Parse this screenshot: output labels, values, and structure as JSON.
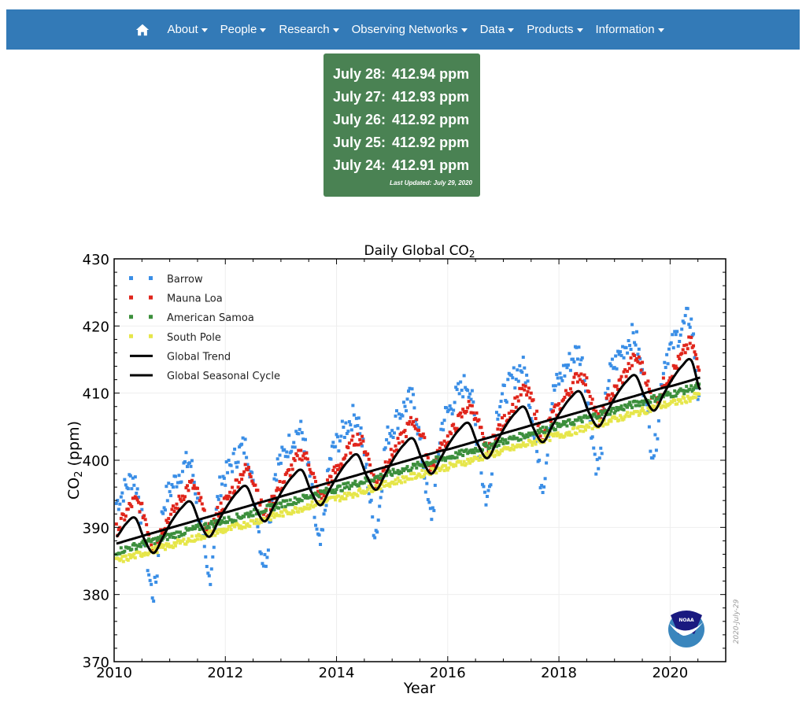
{
  "nav": {
    "items": [
      {
        "label": "About"
      },
      {
        "label": "People"
      },
      {
        "label": "Research"
      },
      {
        "label": "Observing Networks"
      },
      {
        "label": "Data"
      },
      {
        "label": "Products"
      },
      {
        "label": "Information"
      }
    ],
    "home_icon": "home-icon",
    "color": "#337ab7"
  },
  "daily_box": {
    "color": "#4a8253",
    "rows": [
      {
        "date": "July 28:",
        "value": "412.94 ppm"
      },
      {
        "date": "July 27:",
        "value": "412.93 ppm"
      },
      {
        "date": "July 26:",
        "value": "412.92 ppm"
      },
      {
        "date": "July 25:",
        "value": "412.92 ppm"
      },
      {
        "date": "July 24:",
        "value": "412.91 ppm"
      }
    ],
    "last_updated": "Last Updated: July 29, 2020"
  },
  "chart_data": {
    "type": "scatter",
    "title": "Daily Global CO",
    "title_subscript": "2",
    "xlabel": "Year",
    "ylabel": "CO",
    "ylabel_subscript": "2",
    "ylabel_unit": " (ppm)",
    "xlim": [
      2010,
      2021
    ],
    "ylim": [
      370,
      430
    ],
    "xticks": [
      "2010",
      "2012",
      "2014",
      "2016",
      "2018",
      "2020"
    ],
    "yticks": [
      "370",
      "380",
      "390",
      "400",
      "410",
      "420",
      "430"
    ],
    "grid": true,
    "legend_position": "top-left",
    "date_stamp": "2020-July-29",
    "logo": "NOAA",
    "x": [
      2010.04,
      2010.21,
      2010.38,
      2010.54,
      2010.71,
      2010.88,
      2011.04,
      2011.21,
      2011.38,
      2011.54,
      2011.71,
      2011.88,
      2012.04,
      2012.21,
      2012.38,
      2012.54,
      2012.71,
      2012.88,
      2013.04,
      2013.21,
      2013.38,
      2013.54,
      2013.71,
      2013.88,
      2014.04,
      2014.21,
      2014.38,
      2014.54,
      2014.71,
      2014.88,
      2015.04,
      2015.21,
      2015.38,
      2015.54,
      2015.71,
      2015.88,
      2016.04,
      2016.21,
      2016.38,
      2016.54,
      2016.71,
      2016.88,
      2017.04,
      2017.21,
      2017.38,
      2017.54,
      2017.71,
      2017.88,
      2018.04,
      2018.21,
      2018.38,
      2018.54,
      2018.71,
      2018.88,
      2019.04,
      2019.21,
      2019.38,
      2019.54,
      2019.71,
      2019.88,
      2020.04,
      2020.21,
      2020.38,
      2020.54
    ],
    "series": [
      {
        "name": "Barrow",
        "kind": "points",
        "color": "#3a8ee6",
        "values": [
          393.6,
          396.0,
          396.9,
          388.8,
          380.2,
          392.6,
          396.0,
          398.4,
          399.3,
          391.2,
          382.6,
          395.0,
          398.3,
          400.7,
          401.6,
          393.5,
          384.9,
          397.3,
          400.7,
          403.1,
          404.0,
          395.9,
          387.3,
          399.7,
          403.0,
          405.4,
          406.3,
          398.2,
          389.6,
          402.0,
          405.4,
          407.8,
          408.7,
          400.6,
          392.0,
          404.4,
          407.7,
          410.1,
          411.0,
          402.9,
          394.3,
          406.7,
          410.1,
          412.5,
          413.4,
          405.3,
          396.7,
          409.1,
          412.4,
          414.8,
          415.7,
          407.6,
          399.0,
          411.4,
          414.8,
          417.2,
          418.1,
          410.0,
          401.4,
          413.8,
          417.1,
          419.5,
          420.4,
          407.0
        ]
      },
      {
        "name": "Mauna Loa",
        "kind": "points",
        "color": "#e0251b",
        "values": [
          389.6,
          392.0,
          393.9,
          391.8,
          387.2,
          390.1,
          392.0,
          394.4,
          396.3,
          394.2,
          389.6,
          392.5,
          394.3,
          396.7,
          398.6,
          396.5,
          391.9,
          394.8,
          396.7,
          399.1,
          401.0,
          398.9,
          394.3,
          397.2,
          399.0,
          401.4,
          403.3,
          401.2,
          396.6,
          399.5,
          401.4,
          403.8,
          405.7,
          403.6,
          399.0,
          401.9,
          403.7,
          406.1,
          408.0,
          405.9,
          401.3,
          404.2,
          406.1,
          408.5,
          410.4,
          408.3,
          403.7,
          406.6,
          408.4,
          410.8,
          412.7,
          410.6,
          406.0,
          408.9,
          410.8,
          413.2,
          415.1,
          413.0,
          408.4,
          411.3,
          413.1,
          415.5,
          417.4,
          413.0
        ]
      },
      {
        "name": "American Samoa",
        "kind": "points",
        "color": "#3c8f3c",
        "values": [
          386.4,
          386.8,
          387.2,
          387.6,
          388.0,
          388.4,
          388.8,
          389.2,
          389.6,
          390.0,
          390.4,
          390.8,
          391.1,
          391.5,
          391.9,
          392.3,
          392.7,
          393.1,
          393.5,
          393.9,
          394.3,
          394.7,
          395.1,
          395.5,
          395.8,
          396.2,
          396.6,
          397.0,
          397.4,
          397.8,
          398.2,
          398.6,
          399.0,
          399.4,
          399.8,
          400.2,
          400.5,
          400.9,
          401.3,
          401.7,
          402.1,
          402.5,
          402.9,
          403.3,
          403.7,
          404.1,
          404.5,
          404.9,
          405.2,
          405.6,
          406.0,
          406.4,
          406.8,
          407.2,
          407.6,
          408.0,
          408.4,
          408.8,
          409.2,
          409.6,
          409.9,
          410.3,
          410.7,
          411.1
        ]
      },
      {
        "name": "South Pole",
        "kind": "points",
        "color": "#e6e64a",
        "values": [
          385.0,
          385.4,
          385.8,
          386.2,
          386.6,
          387.0,
          387.4,
          387.8,
          388.2,
          388.6,
          389.0,
          389.4,
          389.7,
          390.1,
          390.5,
          390.9,
          391.3,
          391.7,
          392.1,
          392.5,
          392.9,
          393.3,
          393.7,
          394.1,
          394.4,
          394.8,
          395.2,
          395.6,
          396.0,
          396.4,
          396.8,
          397.2,
          397.6,
          398.0,
          398.4,
          398.8,
          399.1,
          399.5,
          399.9,
          400.3,
          400.7,
          401.1,
          401.5,
          401.9,
          402.3,
          402.7,
          403.1,
          403.5,
          403.8,
          404.2,
          404.6,
          405.0,
          405.4,
          405.8,
          406.2,
          406.6,
          407.0,
          407.4,
          407.8,
          408.2,
          408.5,
          408.9,
          409.3,
          409.7
        ]
      },
      {
        "name": "Global Trend",
        "kind": "line",
        "color": "#000000",
        "values": [
          387.6,
          388.0,
          388.4,
          388.8,
          389.2,
          389.6,
          390.0,
          390.4,
          390.8,
          391.2,
          391.6,
          392.0,
          392.3,
          392.7,
          393.1,
          393.5,
          393.9,
          394.3,
          394.7,
          395.1,
          395.5,
          395.9,
          396.3,
          396.7,
          397.0,
          397.4,
          397.8,
          398.2,
          398.6,
          399.0,
          399.4,
          399.8,
          400.2,
          400.6,
          401.0,
          401.4,
          401.7,
          402.1,
          402.5,
          402.9,
          403.3,
          403.7,
          404.1,
          404.5,
          404.9,
          405.3,
          405.7,
          406.1,
          406.4,
          406.8,
          407.2,
          407.6,
          408.0,
          408.4,
          408.8,
          409.2,
          409.6,
          410.0,
          410.4,
          410.8,
          411.1,
          411.5,
          411.9,
          412.3
        ]
      },
      {
        "name": "Global Seasonal Cycle",
        "kind": "line",
        "color": "#000000",
        "values": [
          388.6,
          390.5,
          391.4,
          388.3,
          386.2,
          388.6,
          391.0,
          392.9,
          393.8,
          390.7,
          388.6,
          391.0,
          393.3,
          395.2,
          396.1,
          393.0,
          390.9,
          393.3,
          395.7,
          397.6,
          398.5,
          395.4,
          393.3,
          395.7,
          398.0,
          399.9,
          400.8,
          397.7,
          395.6,
          398.0,
          400.4,
          402.3,
          403.2,
          400.1,
          398.0,
          400.4,
          402.7,
          404.6,
          405.5,
          402.4,
          400.3,
          402.7,
          405.1,
          407.0,
          407.9,
          404.8,
          402.7,
          405.1,
          407.4,
          409.3,
          410.2,
          407.1,
          405.0,
          407.4,
          409.8,
          411.7,
          412.6,
          409.5,
          407.4,
          409.8,
          412.1,
          414.0,
          414.9,
          410.5
        ]
      }
    ]
  }
}
